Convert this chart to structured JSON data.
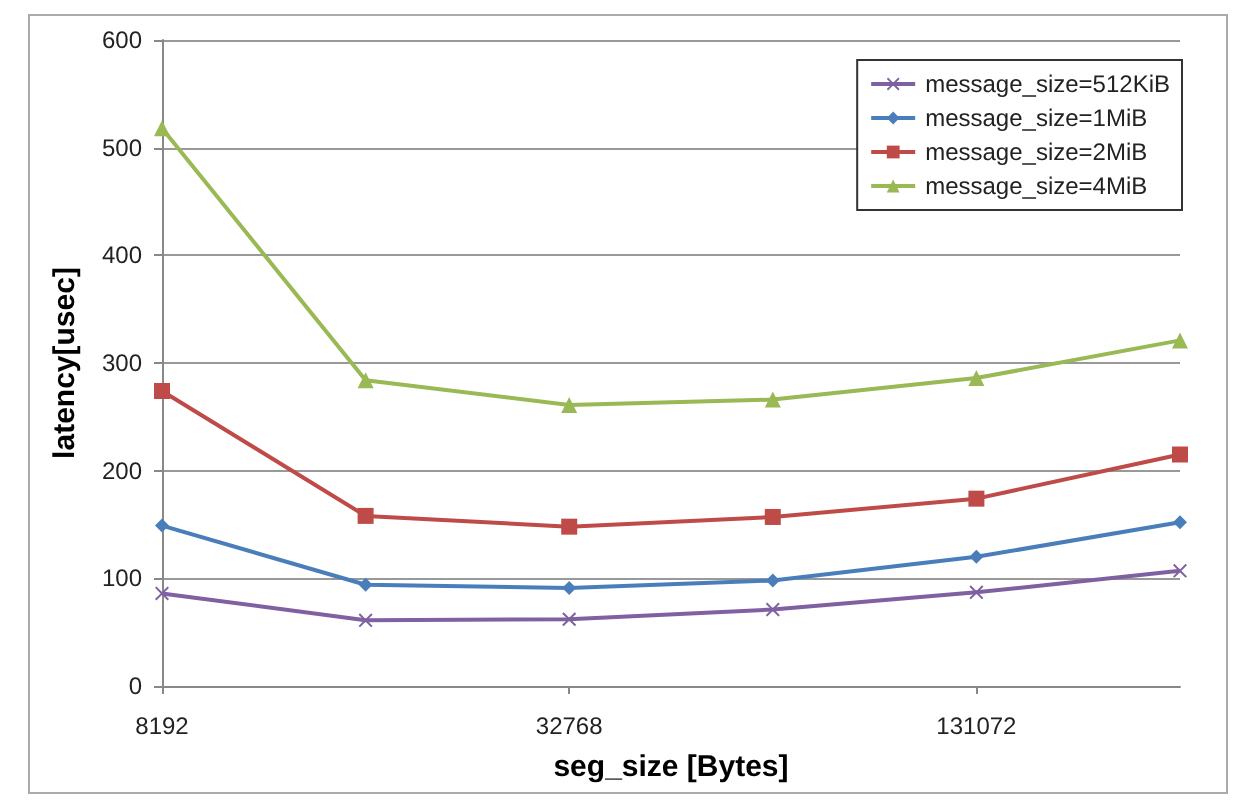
{
  "chart_data": {
    "type": "line",
    "xlabel": "seg_size [Bytes]",
    "ylabel": "latency[usec]",
    "x": [
      8192,
      16384,
      32768,
      65536,
      131072,
      262144
    ],
    "log": "x",
    "xlim": [
      8192,
      262144
    ],
    "xticks": [
      8192,
      32768,
      131072
    ],
    "ylim": [
      0,
      600
    ],
    "yticks": [
      0,
      100,
      200,
      300,
      400,
      500,
      600
    ],
    "grid": "y",
    "legend": "top right",
    "series": [
      {
        "name": "message_size=512KiB",
        "color": "#7f60a0",
        "marker": "cross",
        "values": [
          86,
          61,
          62,
          71,
          87,
          107
        ]
      },
      {
        "name": "message_size=1MiB",
        "color": "#4a7ebb",
        "marker": "diamond",
        "values": [
          149,
          94,
          91,
          98,
          120,
          152
        ]
      },
      {
        "name": "message_size=2MiB",
        "color": "#be4b48",
        "marker": "square",
        "values": [
          274,
          158,
          148,
          157,
          174,
          215
        ]
      },
      {
        "name": "message_size=4MiB",
        "color": "#98b954",
        "marker": "triangle",
        "values": [
          518,
          284,
          261,
          266,
          286,
          321
        ]
      }
    ]
  }
}
